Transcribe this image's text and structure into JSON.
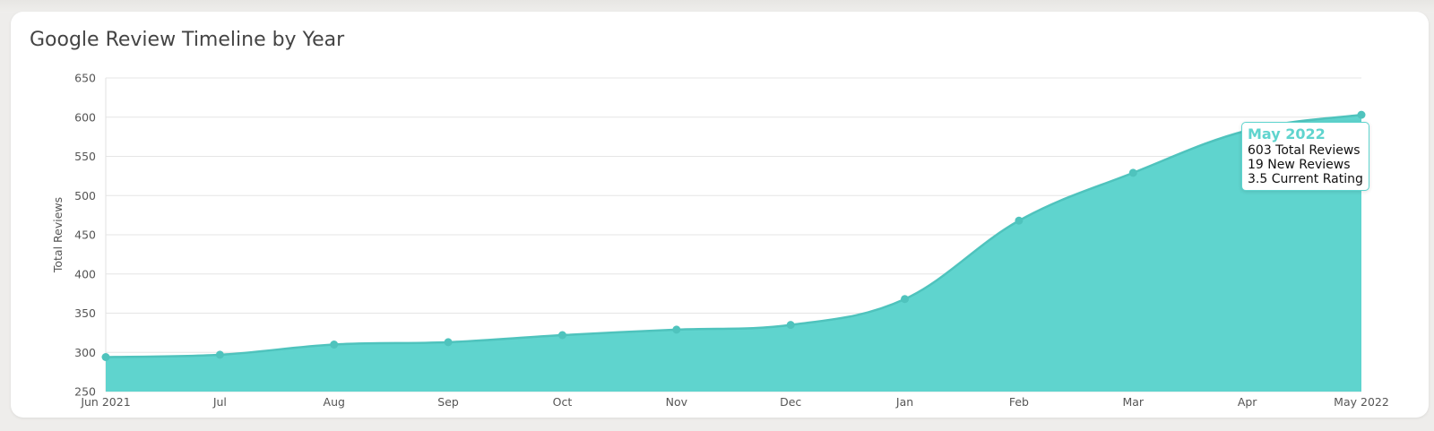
{
  "card": {
    "title": "Google Review Timeline by Year"
  },
  "colors": {
    "area_fill": "#5fd4ce",
    "line": "#4fc3bd",
    "grid": "#e5e5e5",
    "tooltip_accent": "#5fd4ce"
  },
  "chart_data": {
    "type": "area",
    "title": "Google Review Timeline by Year",
    "xlabel": "",
    "ylabel": "Total Reviews",
    "x": [
      "Jun 2021",
      "Jul",
      "Aug",
      "Sep",
      "Oct",
      "Nov",
      "Dec",
      "Jan",
      "Feb",
      "Mar",
      "Apr",
      "May 2022"
    ],
    "series": [
      {
        "values": [
          294,
          297,
          310,
          313,
          322,
          329,
          335,
          368,
          468,
          529,
          583,
          603
        ]
      }
    ],
    "ylim": [
      250,
      650
    ],
    "yticks": [
      650,
      600,
      550,
      500,
      450,
      400,
      350,
      300,
      250
    ],
    "grid": true,
    "legend": "none"
  },
  "tooltip": {
    "title": "May 2022",
    "lines": [
      "603 Total Reviews",
      "19 New Reviews",
      "3.5 Current Rating"
    ]
  }
}
